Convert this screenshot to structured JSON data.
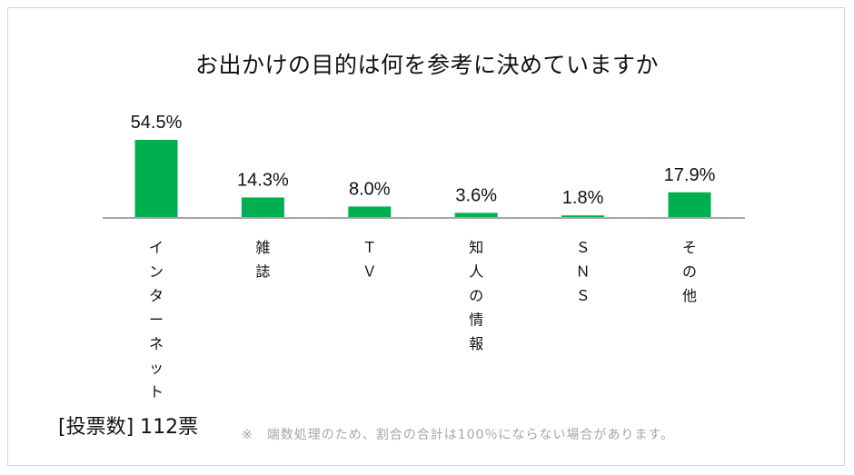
{
  "chart_data": {
    "type": "bar",
    "title": "お出かけの目的は何を参考に決めていますか",
    "categories": [
      "インターネット",
      "雑誌",
      "ＴＶ",
      "知人の情報",
      "ＳＮＳ",
      "その他"
    ],
    "values": [
      54.5,
      14.3,
      8.0,
      3.6,
      1.8,
      17.9
    ],
    "value_labels": [
      "54.5%",
      "14.3%",
      "8.0%",
      "3.6%",
      "1.8%",
      "17.9%"
    ],
    "unit": "%",
    "xlabel": "",
    "ylabel": "",
    "ylim": [
      0,
      54.5
    ],
    "grid": false,
    "legend": "none",
    "bar_color": "#00b050",
    "axis_color": "#a6a6a6"
  },
  "footer": {
    "votes": "[投票数] 112票",
    "note": "※　端数処理のため、割合の合計は100％にならない場合があります。"
  }
}
